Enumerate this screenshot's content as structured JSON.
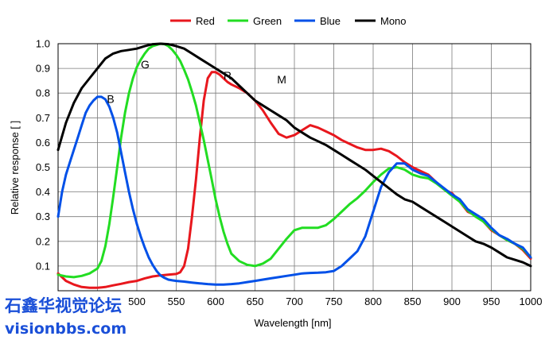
{
  "chart_data": {
    "type": "line",
    "title": "",
    "xlabel": "Wavelength [nm]",
    "ylabel": "Relative response [ ]",
    "xlim": [
      400,
      1000
    ],
    "ylim": [
      0,
      1.0
    ],
    "x_ticks": [
      450,
      500,
      550,
      600,
      650,
      700,
      750,
      800,
      850,
      900,
      950,
      1000
    ],
    "x_tick_labels": [
      "",
      "500",
      "550",
      "600",
      "650",
      "700",
      "750",
      "800",
      "850",
      "900",
      "950",
      "1000"
    ],
    "y_ticks": [
      0.1,
      0.2,
      0.3,
      0.4,
      0.5,
      0.6,
      0.7,
      0.8,
      0.9,
      1.0
    ],
    "y_tick_labels": [
      "0.1",
      "0.2",
      "0.3",
      "0.4",
      "0.5",
      "0.6",
      "0.7",
      "0.8",
      "0.9",
      "1.0"
    ],
    "grid": true,
    "legend_position": "top-center",
    "series": [
      {
        "name": "Red",
        "color": "#e8171d",
        "label": "R",
        "x": [
          400,
          410,
          420,
          430,
          440,
          450,
          460,
          470,
          480,
          490,
          500,
          510,
          520,
          530,
          540,
          550,
          555,
          560,
          565,
          570,
          575,
          580,
          585,
          590,
          595,
          600,
          605,
          610,
          615,
          620,
          630,
          640,
          650,
          660,
          670,
          680,
          690,
          700,
          710,
          720,
          730,
          740,
          750,
          760,
          770,
          780,
          790,
          800,
          810,
          820,
          830,
          840,
          850,
          860,
          870,
          880,
          890,
          900,
          910,
          920,
          930,
          940,
          950,
          960,
          970,
          980,
          990,
          1000
        ],
        "y": [
          0.07,
          0.04,
          0.025,
          0.015,
          0.012,
          0.012,
          0.015,
          0.022,
          0.028,
          0.035,
          0.04,
          0.05,
          0.058,
          0.062,
          0.065,
          0.068,
          0.075,
          0.1,
          0.17,
          0.3,
          0.45,
          0.62,
          0.77,
          0.86,
          0.885,
          0.885,
          0.875,
          0.86,
          0.845,
          0.835,
          0.82,
          0.8,
          0.77,
          0.73,
          0.68,
          0.635,
          0.62,
          0.63,
          0.65,
          0.67,
          0.66,
          0.645,
          0.63,
          0.61,
          0.595,
          0.58,
          0.57,
          0.57,
          0.575,
          0.565,
          0.545,
          0.52,
          0.5,
          0.485,
          0.47,
          0.44,
          0.41,
          0.395,
          0.36,
          0.32,
          0.305,
          0.28,
          0.245,
          0.225,
          0.205,
          0.19,
          0.165,
          0.13
        ]
      },
      {
        "name": "Green",
        "color": "#22dd22",
        "label": "G",
        "x": [
          400,
          410,
          420,
          430,
          440,
          450,
          455,
          460,
          465,
          470,
          475,
          480,
          485,
          490,
          495,
          500,
          505,
          510,
          515,
          520,
          525,
          530,
          535,
          540,
          545,
          550,
          555,
          560,
          565,
          570,
          575,
          580,
          585,
          590,
          595,
          600,
          605,
          610,
          615,
          620,
          630,
          640,
          650,
          660,
          670,
          680,
          690,
          700,
          710,
          720,
          730,
          740,
          750,
          760,
          770,
          780,
          790,
          800,
          810,
          820,
          830,
          840,
          850,
          860,
          870,
          880,
          890,
          900,
          910,
          920,
          930,
          940,
          950,
          960,
          970,
          980,
          990,
          1000
        ],
        "y": [
          0.065,
          0.058,
          0.055,
          0.06,
          0.07,
          0.09,
          0.12,
          0.18,
          0.27,
          0.38,
          0.5,
          0.62,
          0.72,
          0.8,
          0.86,
          0.905,
          0.935,
          0.96,
          0.98,
          0.99,
          0.995,
          1.0,
          0.998,
          0.99,
          0.975,
          0.955,
          0.93,
          0.895,
          0.855,
          0.805,
          0.75,
          0.68,
          0.61,
          0.53,
          0.45,
          0.37,
          0.3,
          0.24,
          0.19,
          0.15,
          0.12,
          0.105,
          0.1,
          0.11,
          0.13,
          0.17,
          0.21,
          0.245,
          0.255,
          0.255,
          0.255,
          0.265,
          0.29,
          0.32,
          0.35,
          0.375,
          0.405,
          0.44,
          0.47,
          0.495,
          0.5,
          0.49,
          0.47,
          0.46,
          0.455,
          0.435,
          0.41,
          0.385,
          0.36,
          0.325,
          0.3,
          0.28,
          0.25,
          0.225,
          0.205,
          0.19,
          0.17,
          0.135
        ]
      },
      {
        "name": "Blue",
        "color": "#0050e8",
        "label": "B",
        "x": [
          400,
          405,
          410,
          415,
          420,
          425,
          430,
          435,
          440,
          445,
          450,
          455,
          460,
          465,
          470,
          475,
          480,
          485,
          490,
          495,
          500,
          505,
          510,
          515,
          520,
          525,
          530,
          535,
          540,
          545,
          550,
          560,
          570,
          580,
          590,
          600,
          610,
          620,
          630,
          640,
          650,
          660,
          670,
          680,
          690,
          700,
          710,
          720,
          730,
          740,
          750,
          760,
          770,
          780,
          790,
          800,
          810,
          820,
          830,
          840,
          850,
          860,
          870,
          880,
          890,
          900,
          910,
          920,
          930,
          940,
          950,
          960,
          970,
          980,
          990,
          1000
        ],
        "y": [
          0.3,
          0.4,
          0.47,
          0.52,
          0.57,
          0.62,
          0.67,
          0.72,
          0.75,
          0.77,
          0.785,
          0.785,
          0.775,
          0.745,
          0.7,
          0.64,
          0.56,
          0.48,
          0.4,
          0.33,
          0.27,
          0.22,
          0.175,
          0.135,
          0.105,
          0.08,
          0.062,
          0.052,
          0.045,
          0.042,
          0.04,
          0.037,
          0.033,
          0.03,
          0.027,
          0.025,
          0.025,
          0.027,
          0.03,
          0.035,
          0.04,
          0.045,
          0.05,
          0.055,
          0.06,
          0.065,
          0.07,
          0.072,
          0.073,
          0.075,
          0.08,
          0.1,
          0.13,
          0.16,
          0.22,
          0.32,
          0.42,
          0.48,
          0.515,
          0.515,
          0.49,
          0.475,
          0.465,
          0.44,
          0.415,
          0.39,
          0.37,
          0.33,
          0.31,
          0.29,
          0.255,
          0.225,
          0.21,
          0.19,
          0.175,
          0.135
        ]
      },
      {
        "name": "Mono",
        "color": "#000000",
        "label": "M",
        "x": [
          400,
          410,
          420,
          430,
          440,
          450,
          460,
          470,
          480,
          490,
          500,
          510,
          520,
          530,
          540,
          550,
          560,
          570,
          580,
          590,
          600,
          610,
          620,
          630,
          640,
          650,
          660,
          670,
          680,
          690,
          700,
          710,
          720,
          730,
          740,
          750,
          760,
          770,
          780,
          790,
          800,
          810,
          820,
          830,
          840,
          850,
          860,
          870,
          880,
          890,
          900,
          910,
          920,
          930,
          940,
          950,
          960,
          970,
          980,
          990,
          1000
        ],
        "y": [
          0.57,
          0.68,
          0.76,
          0.82,
          0.86,
          0.9,
          0.94,
          0.96,
          0.97,
          0.975,
          0.98,
          0.99,
          0.998,
          1.0,
          0.998,
          0.99,
          0.98,
          0.96,
          0.94,
          0.92,
          0.9,
          0.88,
          0.86,
          0.83,
          0.8,
          0.77,
          0.75,
          0.73,
          0.71,
          0.69,
          0.66,
          0.64,
          0.62,
          0.605,
          0.59,
          0.57,
          0.55,
          0.53,
          0.51,
          0.49,
          0.465,
          0.44,
          0.415,
          0.39,
          0.37,
          0.36,
          0.34,
          0.32,
          0.3,
          0.28,
          0.26,
          0.24,
          0.22,
          0.2,
          0.19,
          0.175,
          0.155,
          0.135,
          0.125,
          0.115,
          0.1
        ]
      }
    ],
    "annotations": [
      {
        "text": "R",
        "x": 610,
        "y": 0.855
      },
      {
        "text": "G",
        "x": 505,
        "y": 0.9
      },
      {
        "text": "B",
        "x": 462,
        "y": 0.76
      },
      {
        "text": "M",
        "x": 678,
        "y": 0.84
      }
    ]
  },
  "watermark": {
    "line1": "石鑫华视觉论坛",
    "line2": "visionbbs.com",
    "color": "#1a4fd8"
  }
}
